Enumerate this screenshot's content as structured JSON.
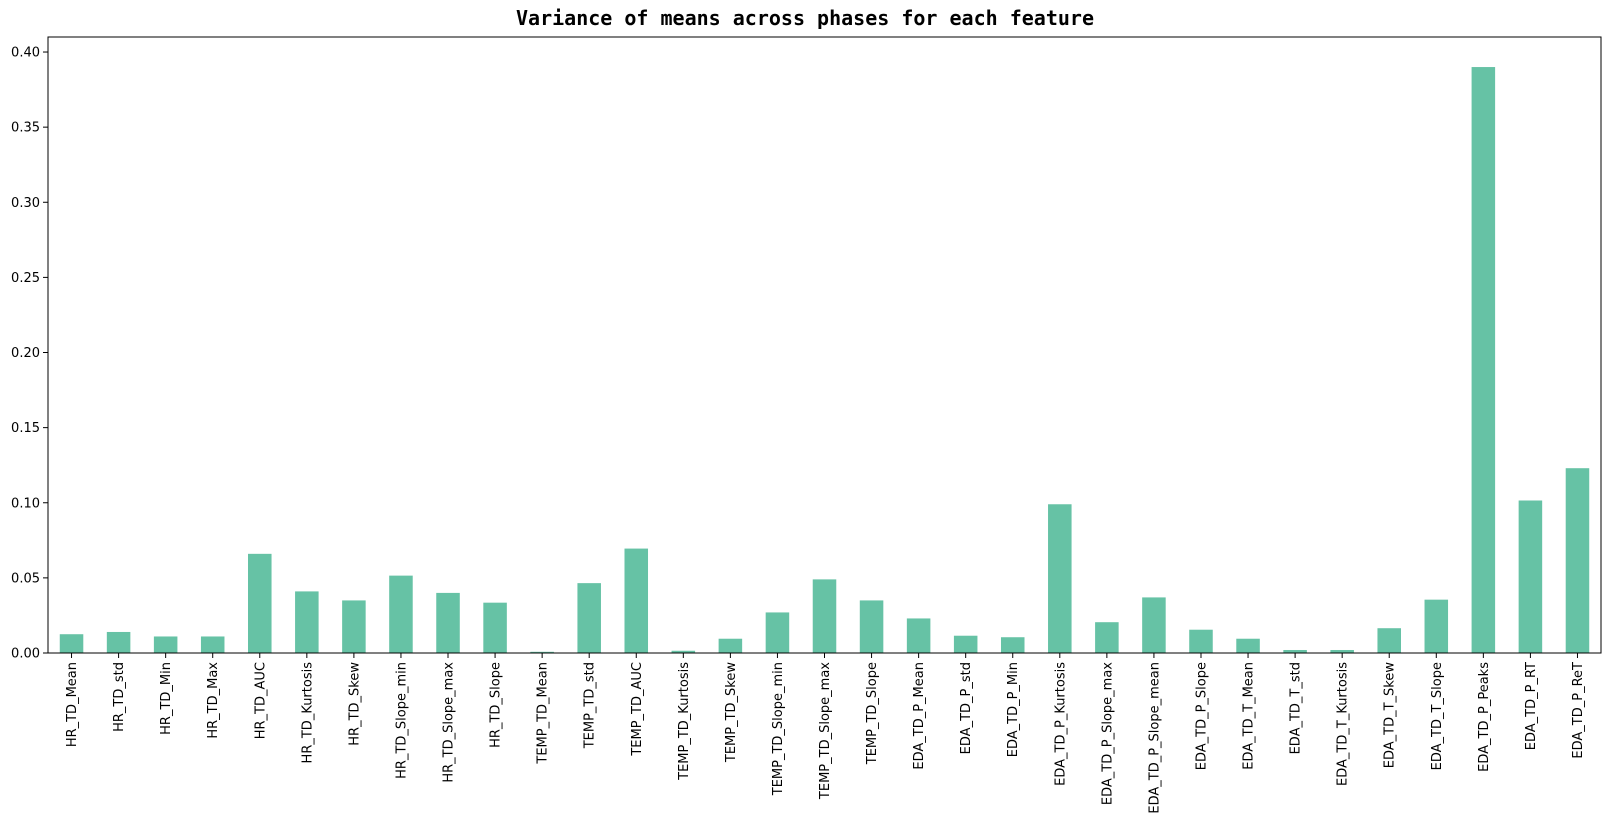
{
  "chart_data": {
    "type": "bar",
    "title": "Variance of means across phases for each feature",
    "xlabel": "",
    "ylabel": "",
    "ylim": [
      0,
      0.41
    ],
    "yticks": [
      0.0,
      0.05,
      0.1,
      0.15,
      0.2,
      0.25,
      0.3,
      0.35,
      0.4
    ],
    "ytick_labels": [
      "0.00",
      "0.05",
      "0.10",
      "0.15",
      "0.20",
      "0.25",
      "0.30",
      "0.35",
      "0.40"
    ],
    "grid": false,
    "bar_color": "#66c2a5",
    "categories": [
      "HR_TD_Mean",
      "HR_TD_std",
      "HR_TD_Min",
      "HR_TD_Max",
      "HR_TD_AUC",
      "HR_TD_Kurtosis",
      "HR_TD_Skew",
      "HR_TD_Slope_min",
      "HR_TD_Slope_max",
      "HR_TD_Slope",
      "TEMP_TD_Mean",
      "TEMP_TD_std",
      "TEMP_TD_AUC",
      "TEMP_TD_Kurtosis",
      "TEMP_TD_Skew",
      "TEMP_TD_Slope_min",
      "TEMP_TD_Slope_max",
      "TEMP_TD_Slope",
      "EDA_TD_P_Mean",
      "EDA_TD_P_std",
      "EDA_TD_P_Min",
      "EDA_TD_P_Kurtosis",
      "EDA_TD_P_Slope_max",
      "EDA_TD_P_Slope_mean",
      "EDA_TD_P_Slope",
      "EDA_TD_T_Mean",
      "EDA_TD_T_std",
      "EDA_TD_T_Kurtosis",
      "EDA_TD_T_Skew",
      "EDA_TD_T_Slope",
      "EDA_TD_P_Peaks",
      "EDA_TD_P_RT",
      "EDA_TD_P_ReT"
    ],
    "values": [
      0.0125,
      0.014,
      0.011,
      0.011,
      0.066,
      0.041,
      0.035,
      0.0515,
      0.04,
      0.0335,
      0.0008,
      0.0465,
      0.0695,
      0.0015,
      0.0095,
      0.027,
      0.049,
      0.035,
      0.023,
      0.0115,
      0.0105,
      0.099,
      0.0205,
      0.037,
      0.0155,
      0.0095,
      0.002,
      0.002,
      0.0165,
      0.0355,
      0.39,
      0.1015,
      0.123
    ]
  }
}
